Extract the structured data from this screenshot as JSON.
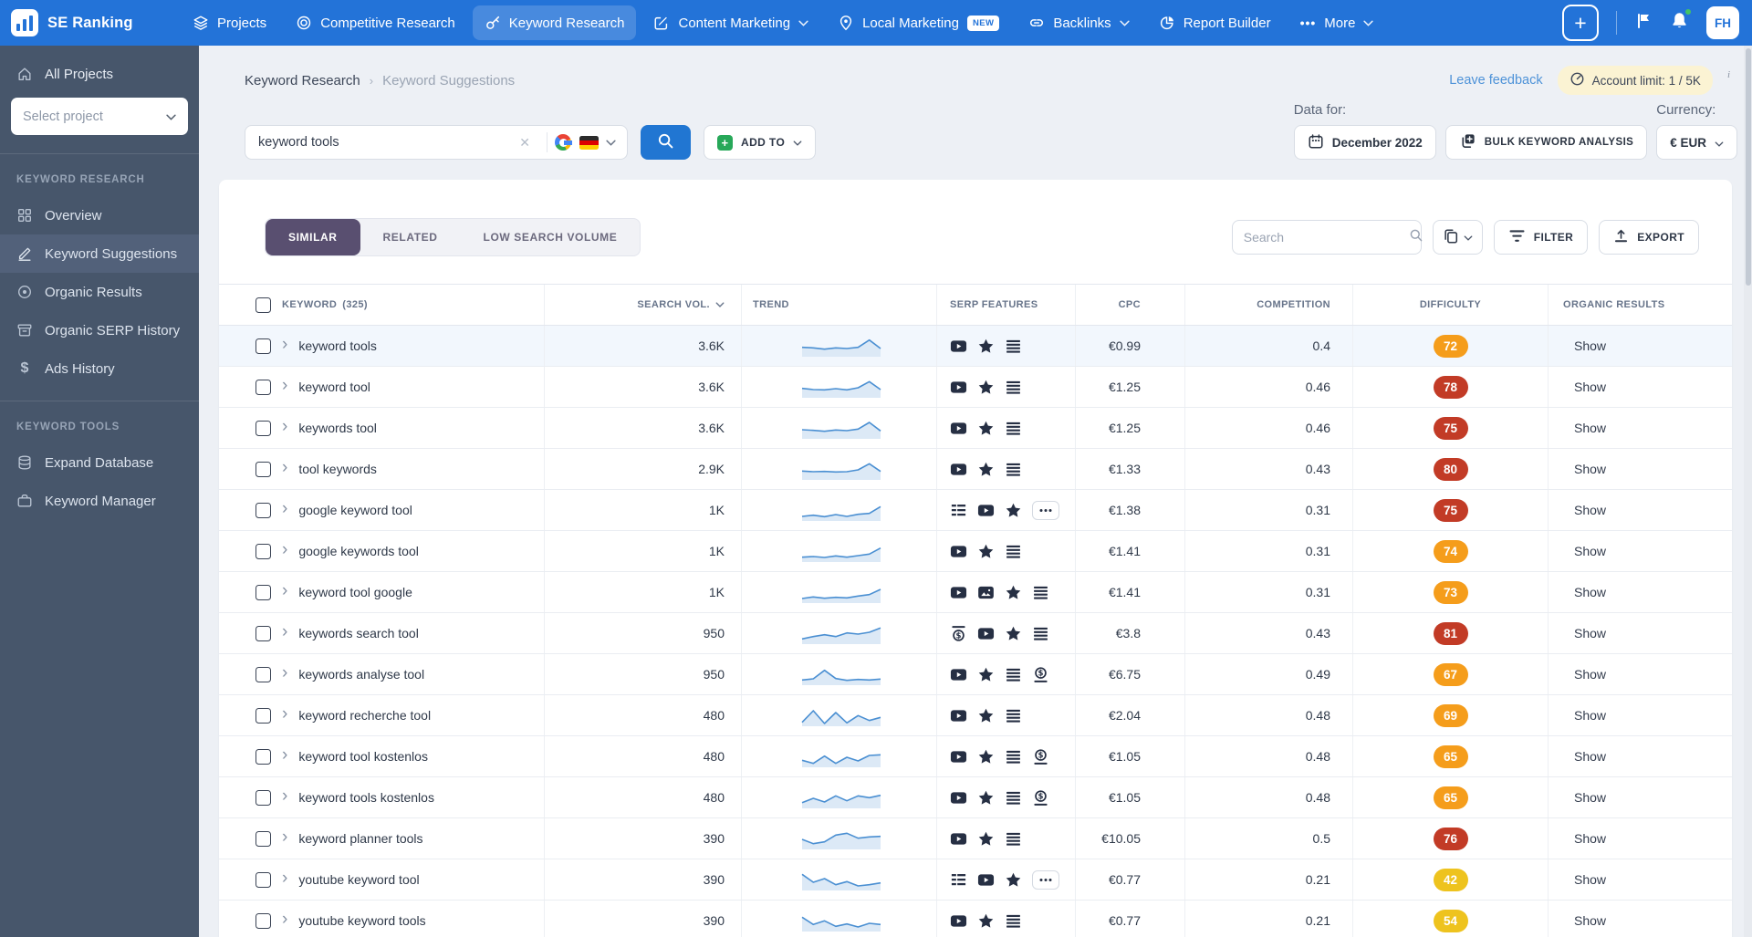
{
  "topbar": {
    "brand": "SE Ranking",
    "items": [
      {
        "label": "Projects"
      },
      {
        "label": "Competitive Research"
      },
      {
        "label": "Keyword Research",
        "active": true
      },
      {
        "label": "Content Marketing",
        "dropdown": true
      },
      {
        "label": "Local Marketing",
        "badge": "NEW"
      },
      {
        "label": "Backlinks",
        "dropdown": true
      },
      {
        "label": "Report Builder"
      },
      {
        "label": "More",
        "dropdown": true
      }
    ],
    "avatar": "FH"
  },
  "sidebar": {
    "all_projects": "All Projects",
    "project_placeholder": "Select project",
    "sections": [
      {
        "title": "KEYWORD RESEARCH",
        "items": [
          "Overview",
          "Keyword Suggestions",
          "Organic Results",
          "Organic SERP History",
          "Ads History"
        ]
      },
      {
        "title": "KEYWORD TOOLS",
        "items": [
          "Expand Database",
          "Keyword Manager"
        ]
      }
    ],
    "active_item": "Keyword Suggestions"
  },
  "header": {
    "breadcrumb": [
      "Keyword Research",
      "Keyword Suggestions"
    ],
    "leave_feedback": "Leave feedback",
    "account_limit": "Account limit: 1 / 5K",
    "account_limit_info": "i",
    "search_value": "keyword tools",
    "add_to_label": "ADD TO",
    "data_for_label": "Data for:",
    "date_button": "December 2022",
    "bulk_button": "BULK KEYWORD ANALYSIS",
    "currency_label": "Currency:",
    "currency_value": "€ EUR"
  },
  "tabs": {
    "items": [
      "SIMILAR",
      "RELATED",
      "LOW SEARCH VOLUME"
    ],
    "active": "SIMILAR"
  },
  "toolbar": {
    "search_placeholder": "Search",
    "filter_label": "FILTER",
    "export_label": "EXPORT"
  },
  "table": {
    "headers": [
      "KEYWORD",
      "SEARCH VOL.",
      "TREND",
      "SERP FEATURES",
      "CPC",
      "COMPETITION",
      "DIFFICULTY",
      "ORGANIC RESULTS"
    ],
    "keyword_count": "(325)",
    "organic_link_label": "Show",
    "rows": [
      {
        "keyword": "keyword tools",
        "volume": "3.6K",
        "trend": [
          4.8,
          4.6,
          4.2,
          4.6,
          4.4,
          4.8,
          7.2,
          4.4
        ],
        "serp_features": [
          "video",
          "reviews",
          "sitelinks"
        ],
        "cpc": "€0.99",
        "competition": "0.4",
        "difficulty": 72,
        "difficulty_level": "orange",
        "highlighted": true
      },
      {
        "keyword": "keyword tool",
        "volume": "3.6K",
        "trend": [
          4.8,
          4.4,
          4.3,
          4.7,
          4.3,
          5.0,
          7.0,
          4.4
        ],
        "serp_features": [
          "video",
          "reviews",
          "sitelinks"
        ],
        "cpc": "€1.25",
        "competition": "0.46",
        "difficulty": 78,
        "difficulty_level": "red"
      },
      {
        "keyword": "keywords tool",
        "volume": "3.6K",
        "trend": [
          4.7,
          4.5,
          4.2,
          4.6,
          4.4,
          4.9,
          7.1,
          4.3
        ],
        "serp_features": [
          "video",
          "reviews",
          "sitelinks"
        ],
        "cpc": "€1.25",
        "competition": "0.46",
        "difficulty": 75,
        "difficulty_level": "red"
      },
      {
        "keyword": "tool keywords",
        "volume": "2.9K",
        "trend": [
          4.6,
          4.4,
          4.5,
          4.3,
          4.4,
          5.0,
          7.0,
          4.5
        ],
        "serp_features": [
          "video",
          "reviews",
          "sitelinks"
        ],
        "cpc": "€1.33",
        "competition": "0.43",
        "difficulty": 80,
        "difficulty_level": "red"
      },
      {
        "keyword": "google keyword tool",
        "volume": "1K",
        "trend": [
          3.2,
          3.6,
          3.1,
          3.8,
          3.2,
          3.9,
          4.2,
          6.4
        ],
        "serp_features": [
          "snippet",
          "video",
          "reviews",
          "more"
        ],
        "cpc": "€1.38",
        "competition": "0.31",
        "difficulty": 75,
        "difficulty_level": "red"
      },
      {
        "keyword": "google keywords tool",
        "volume": "1K",
        "trend": [
          3.3,
          3.5,
          3.2,
          3.7,
          3.3,
          3.8,
          4.3,
          6.3
        ],
        "serp_features": [
          "video",
          "reviews",
          "sitelinks"
        ],
        "cpc": "€1.41",
        "competition": "0.31",
        "difficulty": 74,
        "difficulty_level": "orange"
      },
      {
        "keyword": "keyword tool google",
        "volume": "1K",
        "trend": [
          3.2,
          3.7,
          3.3,
          3.6,
          3.4,
          4.0,
          4.5,
          6.2
        ],
        "serp_features": [
          "video",
          "image",
          "reviews",
          "sitelinks"
        ],
        "cpc": "€1.41",
        "competition": "0.31",
        "difficulty": 73,
        "difficulty_level": "orange"
      },
      {
        "keyword": "keywords search tool",
        "volume": "950",
        "trend": [
          3.4,
          4.2,
          4.8,
          4.2,
          5.4,
          5.0,
          5.6,
          7.0
        ],
        "serp_features": [
          "ads-top",
          "video",
          "reviews",
          "sitelinks"
        ],
        "cpc": "€3.8",
        "competition": "0.43",
        "difficulty": 81,
        "difficulty_level": "red"
      },
      {
        "keyword": "keywords analyse tool",
        "volume": "950",
        "trend": [
          3.4,
          3.8,
          6.6,
          3.9,
          3.3,
          3.6,
          3.4,
          3.7
        ],
        "serp_features": [
          "video",
          "reviews",
          "sitelinks",
          "ads-bottom"
        ],
        "cpc": "€6.75",
        "competition": "0.49",
        "difficulty": 67,
        "difficulty_level": "orange"
      },
      {
        "keyword": "keyword recherche tool",
        "volume": "480",
        "trend": [
          3.0,
          6.8,
          2.6,
          6.2,
          2.8,
          5.2,
          3.6,
          4.6
        ],
        "serp_features": [
          "video",
          "reviews",
          "sitelinks"
        ],
        "cpc": "€2.04",
        "competition": "0.48",
        "difficulty": 69,
        "difficulty_level": "orange"
      },
      {
        "keyword": "keyword tool kostenlos",
        "volume": "480",
        "trend": [
          4.0,
          3.0,
          5.4,
          3.0,
          5.0,
          3.8,
          5.6,
          5.8
        ],
        "serp_features": [
          "video",
          "reviews",
          "sitelinks",
          "ads-bottom"
        ],
        "cpc": "€1.05",
        "competition": "0.48",
        "difficulty": 65,
        "difficulty_level": "orange"
      },
      {
        "keyword": "keyword tools kostenlos",
        "volume": "480",
        "trend": [
          3.6,
          5.0,
          3.8,
          5.8,
          4.2,
          5.8,
          5.2,
          6.0
        ],
        "serp_features": [
          "video",
          "reviews",
          "sitelinks",
          "ads-bottom"
        ],
        "cpc": "€1.05",
        "competition": "0.48",
        "difficulty": 65,
        "difficulty_level": "orange"
      },
      {
        "keyword": "keyword planner tools",
        "volume": "390",
        "trend": [
          5.0,
          3.6,
          4.2,
          6.4,
          7.0,
          5.4,
          5.8,
          6.0
        ],
        "serp_features": [
          "video",
          "reviews",
          "sitelinks"
        ],
        "cpc": "€10.05",
        "competition": "0.5",
        "difficulty": 76,
        "difficulty_level": "red"
      },
      {
        "keyword": "youtube keyword tool",
        "volume": "390",
        "trend": [
          7.0,
          4.4,
          5.6,
          3.6,
          4.6,
          3.2,
          3.6,
          4.2
        ],
        "serp_features": [
          "snippet",
          "video",
          "reviews",
          "more"
        ],
        "cpc": "€0.77",
        "competition": "0.21",
        "difficulty": 42,
        "difficulty_level": "yellow"
      },
      {
        "keyword": "youtube keyword tools",
        "volume": "390",
        "trend": [
          6.4,
          4.0,
          5.2,
          3.4,
          4.2,
          3.2,
          4.4,
          4.0
        ],
        "serp_features": [
          "video",
          "reviews",
          "sitelinks"
        ],
        "cpc": "€0.77",
        "competition": "0.21",
        "difficulty": 54,
        "difficulty_level": "yellow"
      }
    ]
  },
  "colors": {
    "topbar_blue": "#2373d8",
    "sidebar_bg": "#47566b",
    "accent_blue": "#2176d2",
    "tab_active_purple": "#594f70",
    "trend_line": "#4a8fd2",
    "trend_fill": "#dce9f6",
    "difficulty": {
      "red": "#c23b26",
      "orange": "#f59d1b",
      "yellow": "#eec31e"
    }
  }
}
